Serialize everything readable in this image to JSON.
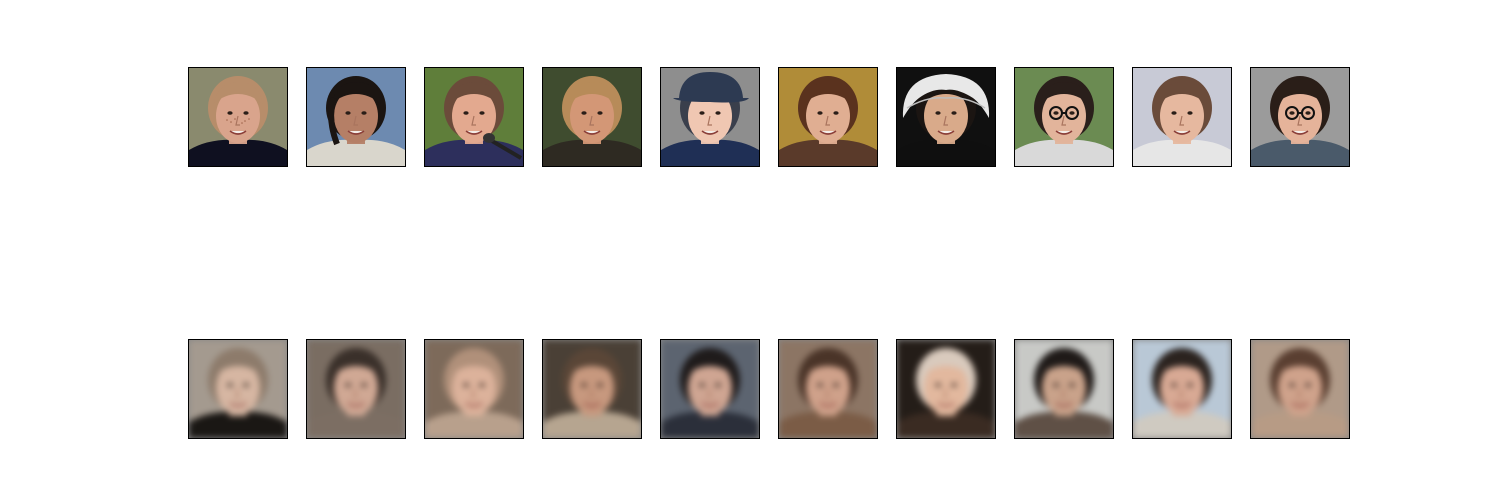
{
  "figure": {
    "rows": [
      {
        "name": "original-faces",
        "tiles": [
          {
            "bg": "#8a8a6e",
            "skin": "#d9a48c",
            "hair": "#b78d6a",
            "shirt": "#0f1020",
            "hat": "",
            "feature": "freckles"
          },
          {
            "bg": "#6d8ab0",
            "skin": "#b57f66",
            "hair": "#1b1512",
            "shirt": "#d9d6cc",
            "hat": "",
            "feature": "profile"
          },
          {
            "bg": "#5f7e3a",
            "skin": "#e3a98f",
            "hair": "#6b4b3a",
            "shirt": "#2d2f5c",
            "hat": "",
            "feature": "microphone"
          },
          {
            "bg": "#3f4c2f",
            "skin": "#d39776",
            "hair": "#b78b59",
            "shirt": "#2e2a22",
            "hat": "",
            "feature": "smile"
          },
          {
            "bg": "#8e8e8e",
            "skin": "#f0c7b2",
            "hair": "#3a3f4c",
            "shirt": "#1f2f55",
            "hat": "#2d3a52",
            "feature": "cap"
          },
          {
            "bg": "#b08c38",
            "skin": "#e0ae92",
            "hair": "#5a321e",
            "shirt": "#5a3a2a",
            "hat": "",
            "feature": "smile"
          },
          {
            "bg": "#101010",
            "skin": "#d9aa8a",
            "hair": "#1b1512",
            "shirt": "#0f0f0f",
            "hat": "#e8e8e8",
            "feature": "bonnet"
          },
          {
            "bg": "#6b8b52",
            "skin": "#e2b49b",
            "hair": "#2a1f1b",
            "shirt": "#d9d9d9",
            "hat": "",
            "feature": "glasses"
          },
          {
            "bg": "#c8cad6",
            "skin": "#e6b89f",
            "hair": "#6a4b3a",
            "shirt": "#e6e6e6",
            "hat": "",
            "feature": "smile"
          },
          {
            "bg": "#9b9b9b",
            "skin": "#e5b39a",
            "hair": "#2a1e18",
            "shirt": "#4a5a6a",
            "hat": "",
            "feature": "glasses"
          }
        ]
      },
      {
        "name": "reconstructed-faces",
        "tiles": [
          {
            "bg": "#a49a8f",
            "skin": "#d6b6a2",
            "hair": "#8d7b6b",
            "shirt": "#1a1714",
            "hat": "",
            "feature": "blurred"
          },
          {
            "bg": "#7a6d62",
            "skin": "#d0a894",
            "hair": "#3a302a",
            "shirt": "#7c6e63",
            "hat": "",
            "feature": "blurred"
          },
          {
            "bg": "#7d6a5a",
            "skin": "#dcb29b",
            "hair": "#b0907a",
            "shirt": "#b8a08c",
            "hat": "",
            "feature": "blurred"
          },
          {
            "bg": "#4a4036",
            "skin": "#c7987e",
            "hair": "#5a4637",
            "shirt": "#b6a590",
            "hat": "",
            "feature": "blurred"
          },
          {
            "bg": "#5c6470",
            "skin": "#cfa592",
            "hair": "#1f1b1b",
            "shirt": "#2b2f3a",
            "hat": "",
            "feature": "blurred"
          },
          {
            "bg": "#8c7564",
            "skin": "#cfa18a",
            "hair": "#4a3428",
            "shirt": "#7b5c46",
            "hat": "",
            "feature": "blurred"
          },
          {
            "bg": "#241d18",
            "skin": "#e2b89e",
            "hair": "#d9cabd",
            "shirt": "#3a2b22",
            "hat": "",
            "feature": "blurred"
          },
          {
            "bg": "#c8c9c6",
            "skin": "#c9a28a",
            "hair": "#1f1a18",
            "shirt": "#5f5046",
            "hat": "",
            "feature": "blurred"
          },
          {
            "bg": "#b9c8d6",
            "skin": "#d8a994",
            "hair": "#2b231f",
            "shirt": "#cfcac1",
            "hat": "",
            "feature": "blurred"
          },
          {
            "bg": "#b09a88",
            "skin": "#cfa28b",
            "hair": "#5a3f31",
            "shirt": "#b79b85",
            "hat": "",
            "feature": "blurred"
          }
        ]
      }
    ]
  }
}
